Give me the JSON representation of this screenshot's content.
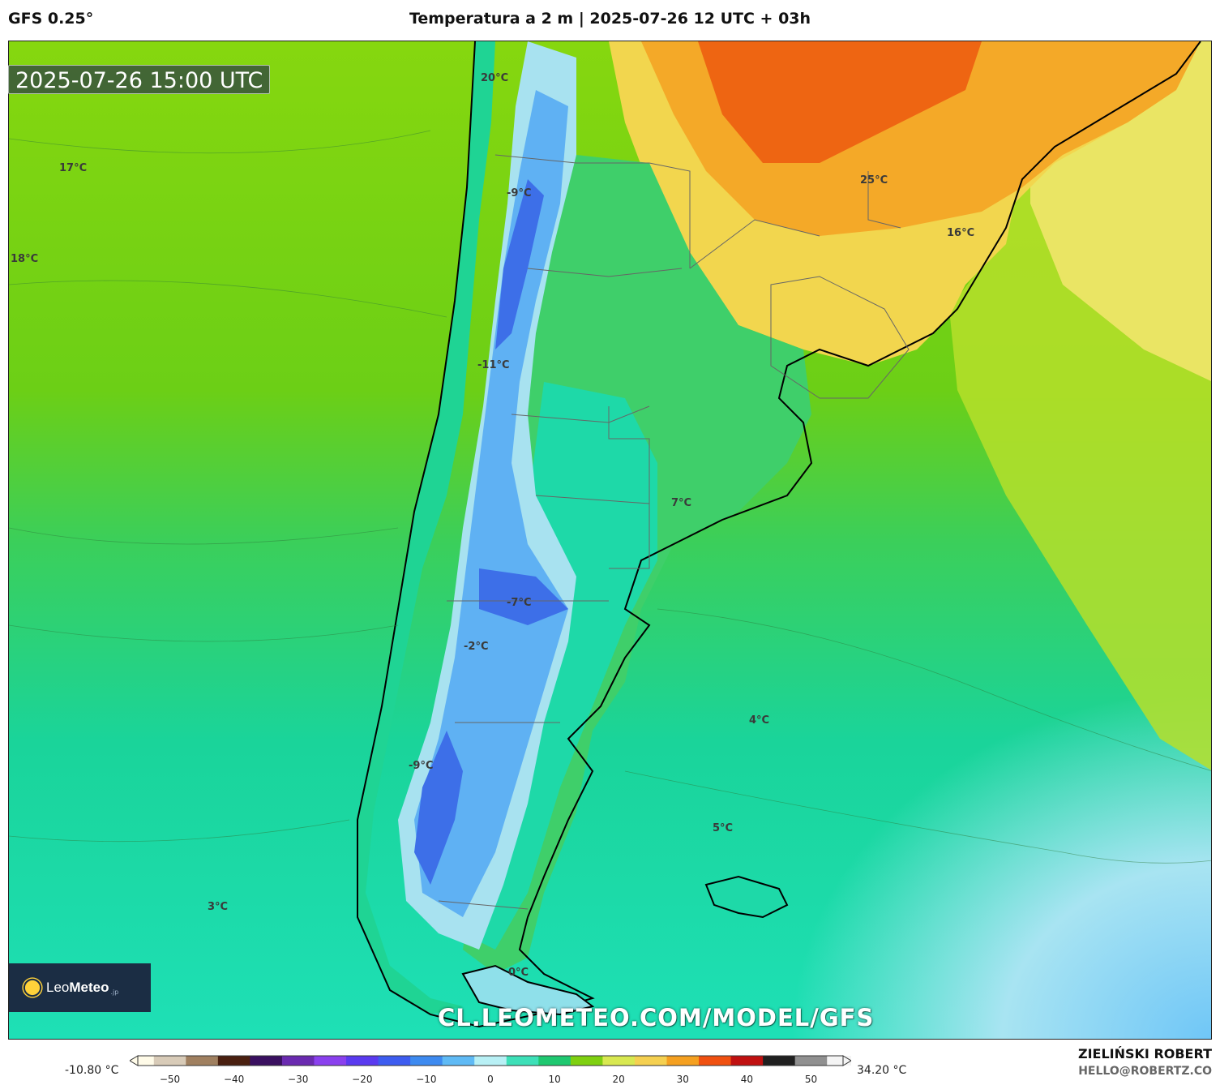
{
  "header": {
    "model": "GFS 0.25°",
    "title": "Temperatura a 2 m | 2025-07-26 12 UTC + 03h"
  },
  "map": {
    "timestamp": "2025-07-26 15:00 UTC",
    "labels": [
      {
        "text": "20°C"
      },
      {
        "text": "17°C"
      },
      {
        "text": "18°C"
      },
      {
        "text": "-9°C"
      },
      {
        "text": "-11°C"
      },
      {
        "text": "25°C"
      },
      {
        "text": "16°C"
      },
      {
        "text": "7°C"
      },
      {
        "text": "-7°C"
      },
      {
        "text": "-2°C"
      },
      {
        "text": "4°C"
      },
      {
        "text": "-9°C"
      },
      {
        "text": "5°C"
      },
      {
        "text": "3°C"
      },
      {
        "text": "0°C"
      }
    ],
    "palette": {
      "ocean_warm": "#7fd40d",
      "ocean_mild": "#2fd27a",
      "ocean_cool": "#16dba8",
      "ocean_cold": "#8fe8ee",
      "ocean_coldest": "#7ad0f5",
      "land_hot": "#f06010",
      "land_warm": "#f5a623",
      "land_mild": "#f5e36a",
      "andes_cold": "#5aa8f0",
      "andes_colder": "#3b6fe8"
    }
  },
  "logo": {
    "name_light": "Leo",
    "name_bold": "Meteo",
    "suffix": ".jp"
  },
  "url_watermark": "CL.LEOMETEO.COM/MODEL/GFS",
  "colorbar": {
    "min_label": "-10.80 °C",
    "max_label": "34.20 °C",
    "ticks": [
      "−50",
      "−40",
      "−30",
      "−20",
      "−10",
      "0",
      "10",
      "20",
      "30",
      "40",
      "50"
    ],
    "tick_values": [
      -50,
      -40,
      -30,
      -20,
      -10,
      0,
      10,
      20,
      30,
      40,
      50
    ],
    "range": [
      -55,
      55
    ]
  },
  "author": {
    "name": "ZIELIŃSKI ROBERT",
    "email": "HELLO@ROBERTZ.CO"
  }
}
